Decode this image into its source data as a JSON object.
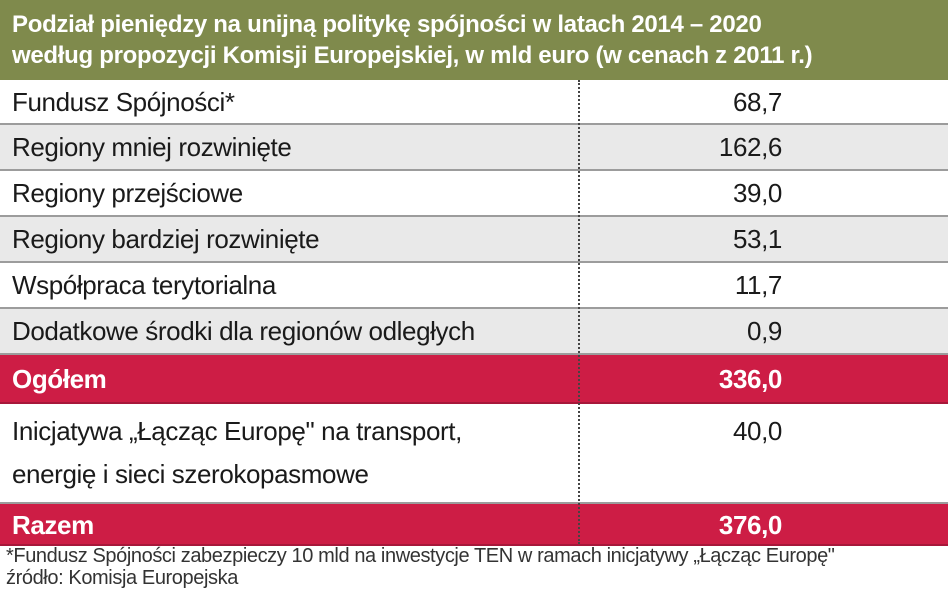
{
  "chart_data": {
    "type": "table",
    "title_lines": [
      "Podział pieniędzy na unijną politykę spójności w latach 2014 – 2020",
      "według propozycji Komisji Europejskiej, w mld euro (w cenach z 2011 r.)"
    ],
    "rows": [
      {
        "label": [
          "Fundusz Spójności*"
        ],
        "value": "68,7"
      },
      {
        "label": [
          "Regiony mniej rozwinięte"
        ],
        "value": "162,6"
      },
      {
        "label": [
          "Regiony przejściowe"
        ],
        "value": "39,0"
      },
      {
        "label": [
          "Regiony bardziej rozwinięte"
        ],
        "value": "53,1"
      },
      {
        "label": [
          "Współpraca terytorialna"
        ],
        "value": "11,7"
      },
      {
        "label": [
          "Dodatkowe środki dla regionów odległych"
        ],
        "value": "0,9"
      },
      {
        "label": [
          "Ogółem"
        ],
        "value": "336,0",
        "highlight": true
      },
      {
        "label": [
          "Inicjatywa „Łącząc Europę\" na transport,",
          "energię i sieci szerokopasmowe"
        ],
        "value": "40,0"
      },
      {
        "label": [
          "Razem"
        ],
        "value": "376,0",
        "highlight": true
      }
    ],
    "footnote": "*Fundusz Spójności zabezpieczy 10 mld na inwestycje TEN w ramach inicjatywy „Łącząc Europę\"",
    "source": "źródło: Komisja Europejska",
    "colors": {
      "header": "#7f8a4c",
      "highlight": "#cd1d45",
      "stripe": "#e9e9e9"
    }
  }
}
